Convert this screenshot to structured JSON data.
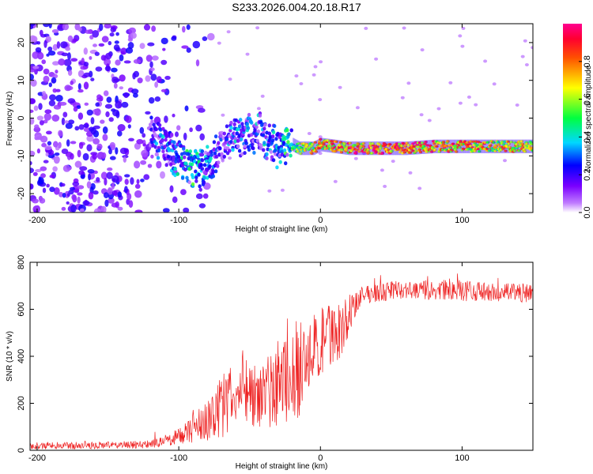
{
  "title": "S233.2026.004.20.18.R17",
  "colors": {
    "snr_line": "#ee2222",
    "spectrogram_noise": "#9a40e8",
    "axis": "#000000"
  },
  "chart_data": [
    {
      "type": "heatmap",
      "name": "spectrogram",
      "xlabel": "Height of straight line (km)",
      "ylabel": "Frequency (Hz)",
      "xlim": [
        -205,
        150
      ],
      "ylim": [
        -25,
        25
      ],
      "xticks": [
        -200,
        -100,
        0,
        100
      ],
      "xtick_labels": [
        "-200",
        "-100",
        "0",
        "100"
      ],
      "yticks": [
        -20,
        -10,
        0,
        10,
        20
      ],
      "ytick_labels": [
        "-20",
        "-10",
        "0",
        "10",
        "20"
      ],
      "colorbar": {
        "label": "Normalized spectral amplitude",
        "range": [
          0.0,
          1.0
        ],
        "ticks": [
          0.0,
          0.2,
          0.4,
          0.6,
          0.8
        ],
        "tick_labels": [
          "0.0",
          "0.2",
          "0.4",
          "0.6",
          "0.8"
        ],
        "colormap": "rainbow (white-violet-blue-cyan-green-yellow-red-magenta)"
      },
      "signal_track": {
        "description": "Estimated frequency of the strongest spectral component vs height",
        "x": [
          -120,
          -110,
          -100,
          -95,
          -90,
          -85,
          -80,
          -75,
          -70,
          -65,
          -60,
          -55,
          -50,
          -45,
          -40,
          -35,
          -30,
          -25,
          -20,
          -15,
          -10,
          -5,
          0,
          10,
          20,
          40,
          60,
          80,
          100,
          120,
          150
        ],
        "frequency": [
          -5,
          -7,
          -11,
          -13,
          -13,
          -14,
          -13,
          -11,
          -7,
          -5,
          -4,
          -5,
          -4,
          -3,
          -5,
          -7,
          -8,
          -7,
          -7,
          -8,
          -8,
          -8,
          -7,
          -7.5,
          -8,
          -8,
          -8,
          -7.5,
          -7.5,
          -7.5,
          -7.5
        ],
        "amplitude": [
          0.3,
          0.4,
          0.45,
          0.5,
          0.5,
          0.45,
          0.4,
          0.35,
          0.3,
          0.35,
          0.4,
          0.4,
          0.45,
          0.4,
          0.4,
          0.4,
          0.45,
          0.5,
          0.55,
          0.6,
          0.7,
          0.75,
          0.8,
          0.85,
          0.9,
          0.95,
          0.9,
          0.85,
          0.85,
          0.8,
          0.75
        ]
      },
      "noise_region": {
        "description": "scattered low-amplitude noise",
        "x_range": [
          -205,
          -75
        ],
        "frequency_range": [
          -25,
          25
        ],
        "amplitude_range": [
          0.05,
          0.25
        ]
      }
    },
    {
      "type": "line",
      "name": "snr",
      "xlabel": "Height of straight line (km)",
      "ylabel": "SNR (10 * v/v)",
      "xlim": [
        -205,
        150
      ],
      "ylim": [
        0,
        800
      ],
      "xticks": [
        -200,
        -100,
        0,
        100
      ],
      "xtick_labels": [
        "-200",
        "-100",
        "0",
        "100"
      ],
      "yticks": [
        0,
        200,
        400,
        600,
        800
      ],
      "ytick_labels": [
        "0",
        "200",
        "400",
        "600",
        "800"
      ],
      "series": [
        {
          "name": "SNR",
          "x": [
            -205,
            -180,
            -150,
            -120,
            -110,
            -100,
            -90,
            -80,
            -70,
            -60,
            -55,
            -50,
            -40,
            -30,
            -20,
            -15,
            -10,
            -5,
            0,
            5,
            10,
            15,
            20,
            25,
            30,
            40,
            50,
            60,
            80,
            100,
            120,
            150
          ],
          "mean": [
            20,
            20,
            22,
            25,
            40,
            60,
            90,
            130,
            180,
            240,
            280,
            260,
            240,
            270,
            320,
            360,
            380,
            420,
            450,
            480,
            500,
            520,
            570,
            620,
            660,
            670,
            680,
            680,
            680,
            680,
            670,
            670
          ],
          "spread": [
            15,
            15,
            15,
            18,
            25,
            35,
            60,
            90,
            130,
            170,
            170,
            160,
            150,
            170,
            190,
            220,
            170,
            160,
            150,
            150,
            130,
            120,
            80,
            50,
            40,
            40,
            40,
            40,
            45,
            45,
            40,
            40
          ]
        }
      ]
    }
  ]
}
